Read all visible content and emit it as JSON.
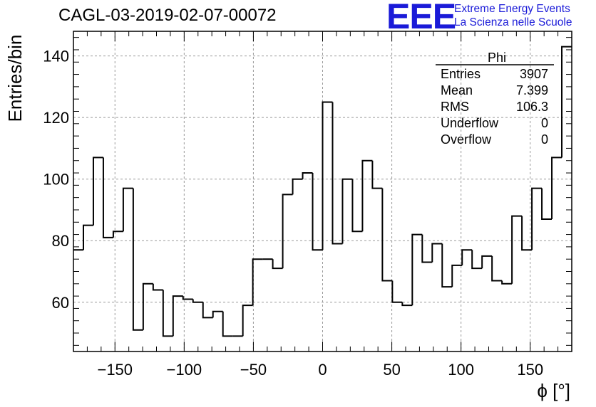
{
  "title": "CAGL-03-2019-02-07-00072",
  "logo": {
    "mark": "EEE",
    "line1": "Extreme Energy Events",
    "line2": "La Scienza nelle Scuole",
    "color": "#1a1ad8"
  },
  "stats": {
    "name": "Phi",
    "rows": [
      {
        "label": "Entries",
        "value": "3907"
      },
      {
        "label": "Mean",
        "value": "7.399"
      },
      {
        "label": "RMS",
        "value": "106.3"
      },
      {
        "label": "Underflow",
        "value": "0"
      },
      {
        "label": "Overflow",
        "value": "0"
      }
    ]
  },
  "chart_data": {
    "type": "bar",
    "style": "step-histogram",
    "xlabel": "ϕ [°]",
    "ylabel": "Entries/bin",
    "xlim": [
      -180,
      180
    ],
    "ylim": [
      44,
      148
    ],
    "grid": true,
    "bin_width": 7.2,
    "xticks": [
      -150,
      -100,
      -50,
      0,
      50,
      100,
      150
    ],
    "yticks": [
      60,
      80,
      100,
      120,
      140
    ],
    "values": [
      77,
      85,
      107,
      81,
      83,
      97,
      51,
      66,
      64,
      49,
      62,
      61,
      60,
      55,
      57,
      49,
      49,
      59,
      74,
      74,
      71,
      95,
      100,
      102,
      77,
      125,
      79,
      100,
      83,
      106,
      97,
      67,
      60,
      59,
      82,
      73,
      79,
      65,
      72,
      77,
      71,
      75,
      67,
      66,
      88,
      77,
      97,
      87,
      107,
      143
    ]
  }
}
